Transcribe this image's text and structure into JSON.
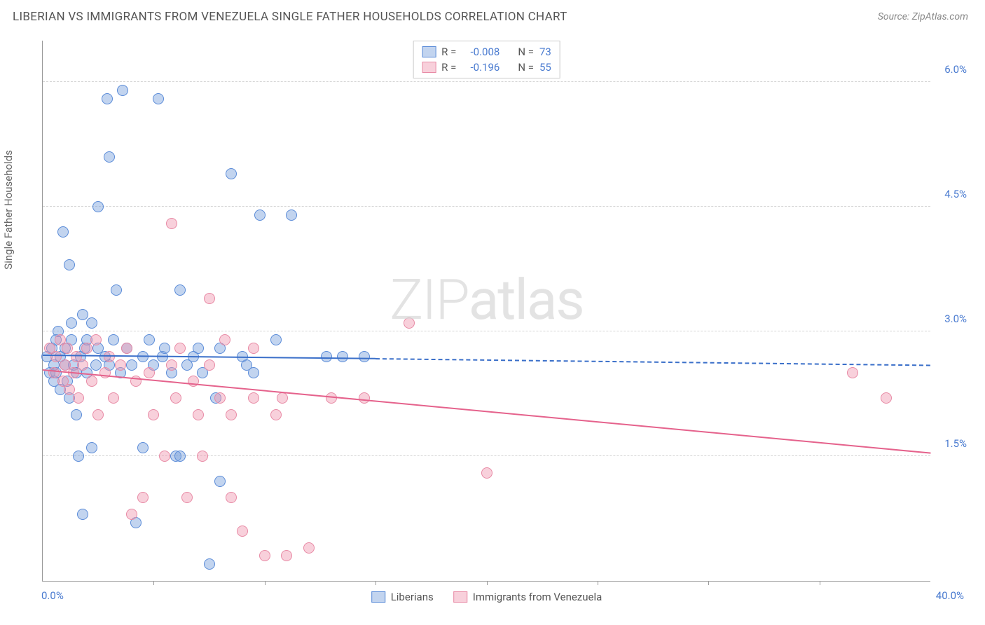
{
  "title": "LIBERIAN VS IMMIGRANTS FROM VENEZUELA SINGLE FATHER HOUSEHOLDS CORRELATION CHART",
  "source": "Source: ZipAtlas.com",
  "ylabel": "Single Father Households",
  "watermark_a": "ZIP",
  "watermark_b": "atlas",
  "chart": {
    "type": "scatter",
    "xlim": [
      0,
      40
    ],
    "ylim": [
      0,
      6.5
    ],
    "x_min_label": "0.0%",
    "x_max_label": "40.0%",
    "y_ticks": [
      1.5,
      3.0,
      4.5,
      6.0
    ],
    "y_tick_labels": [
      "1.5%",
      "3.0%",
      "4.5%",
      "6.0%"
    ],
    "x_tick_positions": [
      5,
      10,
      15,
      20,
      25,
      30,
      35
    ],
    "grid_color": "#d5d5d5",
    "background_color": "#ffffff",
    "axis_label_color": "#4a7bd0"
  },
  "series": [
    {
      "name": "Liberians",
      "fill": "rgba(120,160,220,0.45)",
      "stroke": "#5a8bd8",
      "line_color": "#3a6fc9",
      "R": "-0.008",
      "N": "73",
      "trend": {
        "x1": 0,
        "y1": 2.72,
        "x2": 15,
        "y2": 2.68,
        "dash_x2": 40,
        "dash_y2": 2.6
      },
      "points": [
        [
          0.2,
          2.7
        ],
        [
          0.3,
          2.5
        ],
        [
          0.4,
          2.8
        ],
        [
          0.5,
          2.4
        ],
        [
          0.5,
          2.6
        ],
        [
          0.6,
          2.9
        ],
        [
          0.6,
          2.5
        ],
        [
          0.7,
          3.0
        ],
        [
          0.8,
          2.7
        ],
        [
          0.8,
          2.3
        ],
        [
          0.9,
          4.2
        ],
        [
          1.0,
          2.6
        ],
        [
          1.0,
          2.8
        ],
        [
          1.1,
          2.4
        ],
        [
          1.2,
          3.8
        ],
        [
          1.2,
          2.2
        ],
        [
          1.3,
          2.9
        ],
        [
          1.3,
          3.1
        ],
        [
          1.4,
          2.6
        ],
        [
          1.5,
          2.0
        ],
        [
          1.5,
          2.5
        ],
        [
          1.6,
          1.5
        ],
        [
          1.7,
          2.7
        ],
        [
          1.8,
          3.2
        ],
        [
          1.8,
          0.8
        ],
        [
          1.9,
          2.8
        ],
        [
          2.0,
          2.5
        ],
        [
          2.0,
          2.9
        ],
        [
          2.2,
          3.1
        ],
        [
          2.2,
          1.6
        ],
        [
          2.4,
          2.6
        ],
        [
          2.5,
          2.8
        ],
        [
          2.5,
          4.5
        ],
        [
          2.8,
          2.7
        ],
        [
          2.9,
          5.8
        ],
        [
          3.0,
          2.6
        ],
        [
          3.0,
          5.1
        ],
        [
          3.2,
          2.9
        ],
        [
          3.3,
          3.5
        ],
        [
          3.5,
          2.5
        ],
        [
          3.6,
          5.9
        ],
        [
          3.8,
          2.8
        ],
        [
          4.0,
          2.6
        ],
        [
          4.2,
          0.7
        ],
        [
          4.5,
          2.7
        ],
        [
          4.5,
          1.6
        ],
        [
          4.8,
          2.9
        ],
        [
          5.0,
          2.6
        ],
        [
          5.2,
          5.8
        ],
        [
          5.4,
          2.7
        ],
        [
          5.5,
          2.8
        ],
        [
          5.8,
          2.5
        ],
        [
          6.0,
          1.5
        ],
        [
          6.2,
          3.5
        ],
        [
          6.2,
          1.5
        ],
        [
          6.5,
          2.6
        ],
        [
          6.8,
          2.7
        ],
        [
          7.0,
          2.8
        ],
        [
          7.2,
          2.5
        ],
        [
          7.5,
          0.2
        ],
        [
          7.8,
          2.2
        ],
        [
          8.0,
          1.2
        ],
        [
          8.0,
          2.8
        ],
        [
          8.5,
          4.9
        ],
        [
          9.0,
          2.7
        ],
        [
          9.2,
          2.6
        ],
        [
          9.5,
          2.5
        ],
        [
          9.8,
          4.4
        ],
        [
          10.5,
          2.9
        ],
        [
          11.2,
          4.4
        ],
        [
          12.8,
          2.7
        ],
        [
          13.5,
          2.7
        ],
        [
          14.5,
          2.7
        ]
      ]
    },
    {
      "name": "Immigrants from Venezuela",
      "fill": "rgba(240,150,175,0.45)",
      "stroke": "#e88aa5",
      "line_color": "#e5628c",
      "R": "-0.196",
      "N": "55",
      "trend": {
        "x1": 0,
        "y1": 2.55,
        "x2": 40,
        "y2": 1.55
      },
      "points": [
        [
          0.3,
          2.8
        ],
        [
          0.5,
          2.5
        ],
        [
          0.6,
          2.7
        ],
        [
          0.8,
          2.9
        ],
        [
          0.9,
          2.4
        ],
        [
          1.0,
          2.6
        ],
        [
          1.1,
          2.8
        ],
        [
          1.2,
          2.3
        ],
        [
          1.4,
          2.5
        ],
        [
          1.5,
          2.7
        ],
        [
          1.6,
          2.2
        ],
        [
          1.8,
          2.6
        ],
        [
          2.0,
          2.8
        ],
        [
          2.2,
          2.4
        ],
        [
          2.4,
          2.9
        ],
        [
          2.5,
          2.0
        ],
        [
          2.8,
          2.5
        ],
        [
          3.0,
          2.7
        ],
        [
          3.2,
          2.2
        ],
        [
          3.5,
          2.6
        ],
        [
          3.8,
          2.8
        ],
        [
          4.0,
          0.8
        ],
        [
          4.2,
          2.4
        ],
        [
          4.5,
          1.0
        ],
        [
          4.8,
          2.5
        ],
        [
          5.0,
          2.0
        ],
        [
          5.5,
          1.5
        ],
        [
          5.8,
          2.6
        ],
        [
          5.8,
          4.3
        ],
        [
          6.0,
          2.2
        ],
        [
          6.2,
          2.8
        ],
        [
          6.5,
          1.0
        ],
        [
          6.8,
          2.4
        ],
        [
          7.0,
          2.0
        ],
        [
          7.2,
          1.5
        ],
        [
          7.5,
          3.4
        ],
        [
          7.5,
          2.6
        ],
        [
          8.0,
          2.2
        ],
        [
          8.2,
          2.9
        ],
        [
          8.5,
          2.0
        ],
        [
          8.5,
          1.0
        ],
        [
          9.0,
          0.6
        ],
        [
          9.5,
          2.8
        ],
        [
          9.5,
          2.2
        ],
        [
          10.0,
          0.3
        ],
        [
          10.5,
          2.0
        ],
        [
          10.8,
          2.2
        ],
        [
          11.0,
          0.3
        ],
        [
          12.0,
          0.4
        ],
        [
          13.0,
          2.2
        ],
        [
          14.5,
          2.2
        ],
        [
          16.5,
          3.1
        ],
        [
          20.0,
          1.3
        ],
        [
          36.5,
          2.5
        ],
        [
          38.0,
          2.2
        ]
      ]
    }
  ],
  "legend_top": [
    {
      "swatch_bg": "rgba(120,160,220,0.45)",
      "swatch_border": "#5a8bd8",
      "r_label": "R =",
      "r_val": "-0.008",
      "n_label": "N =",
      "n_val": "73"
    },
    {
      "swatch_bg": "rgba(240,150,175,0.45)",
      "swatch_border": "#e88aa5",
      "r_label": "R =",
      "r_val": "-0.196",
      "n_label": "N =",
      "n_val": "55"
    }
  ],
  "legend_bottom": [
    {
      "swatch_bg": "rgba(120,160,220,0.45)",
      "swatch_border": "#5a8bd8",
      "label": "Liberians"
    },
    {
      "swatch_bg": "rgba(240,150,175,0.45)",
      "swatch_border": "#e88aa5",
      "label": "Immigrants from Venezuela"
    }
  ]
}
